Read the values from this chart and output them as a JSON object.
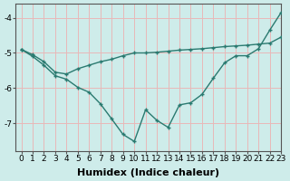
{
  "line1_x": [
    0,
    1,
    2,
    3,
    4,
    5,
    6,
    7,
    8,
    9,
    10,
    11,
    12,
    13,
    14,
    15,
    16,
    17,
    18,
    19,
    20,
    21,
    22,
    23
  ],
  "line1_y": [
    -4.9,
    -5.05,
    -5.25,
    -5.55,
    -5.6,
    -5.45,
    -5.35,
    -5.25,
    -5.18,
    -5.08,
    -5.0,
    -5.0,
    -4.98,
    -4.95,
    -4.92,
    -4.9,
    -4.88,
    -4.85,
    -4.82,
    -4.8,
    -4.78,
    -4.75,
    -4.72,
    -4.55
  ],
  "line2_x": [
    0,
    1,
    2,
    3,
    4,
    5,
    6,
    7,
    8,
    9,
    10,
    11,
    12,
    13,
    14,
    15,
    16,
    17,
    18,
    19,
    20,
    21,
    22,
    23
  ],
  "line2_y": [
    -4.9,
    -5.1,
    -5.35,
    -5.65,
    -5.75,
    -5.98,
    -6.12,
    -6.45,
    -6.88,
    -7.32,
    -7.52,
    -6.62,
    -6.92,
    -7.12,
    -6.48,
    -6.42,
    -6.18,
    -5.72,
    -5.28,
    -5.08,
    -5.08,
    -4.88,
    -4.35,
    -3.85
  ],
  "bg_color": "#ceecea",
  "line_color": "#2a7a70",
  "grid_color": "#e8b8b8",
  "xlabel": "Humidex (Indice chaleur)",
  "ylim": [
    -7.8,
    -3.6
  ],
  "xlim": [
    -0.5,
    23
  ],
  "yticks": [
    -7,
    -6,
    -5,
    -4
  ],
  "xticks": [
    0,
    1,
    2,
    3,
    4,
    5,
    6,
    7,
    8,
    9,
    10,
    11,
    12,
    13,
    14,
    15,
    16,
    17,
    18,
    19,
    20,
    21,
    22,
    23
  ],
  "tick_fontsize": 6.5,
  "xlabel_fontsize": 8
}
